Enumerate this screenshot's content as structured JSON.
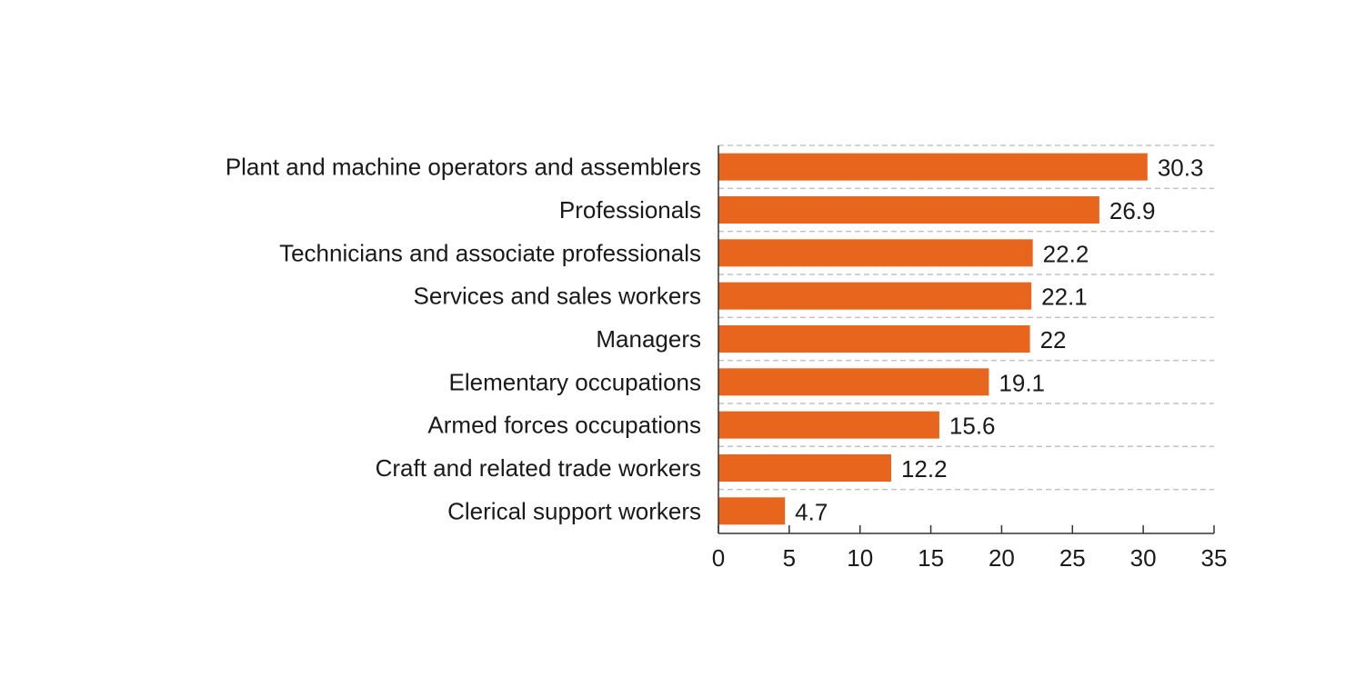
{
  "chart_data": {
    "type": "bar",
    "orientation": "horizontal",
    "categories": [
      "Plant and machine operators and assemblers",
      "Professionals",
      "Technicians and associate professionals",
      "Services and sales workers",
      "Managers",
      "Elementary occupations",
      "Armed forces occupations",
      "Craft and related trade workers",
      "Clerical support workers"
    ],
    "values": [
      30.3,
      26.9,
      22.2,
      22.1,
      22,
      19.1,
      15.6,
      12.2,
      4.7
    ],
    "data_labels": [
      "30.3",
      "26.9",
      "22.2",
      "22.1",
      "22",
      "19.1",
      "15.6",
      "12.2",
      "4.7"
    ],
    "x_ticks": [
      0,
      5,
      10,
      15,
      20,
      25,
      30,
      35
    ],
    "x_tick_labels": [
      "0",
      "5",
      "10",
      "15",
      "20",
      "25",
      "30",
      "35"
    ],
    "xlim": [
      0,
      35
    ],
    "title": "",
    "xlabel": "",
    "ylabel": "",
    "grid": "horizontal dashed separators",
    "legend": "none",
    "bar_color": "#e8651e",
    "grid_color": "#c3c3c3",
    "axis_color": "#333333",
    "text_color": "#1a1a1a"
  }
}
